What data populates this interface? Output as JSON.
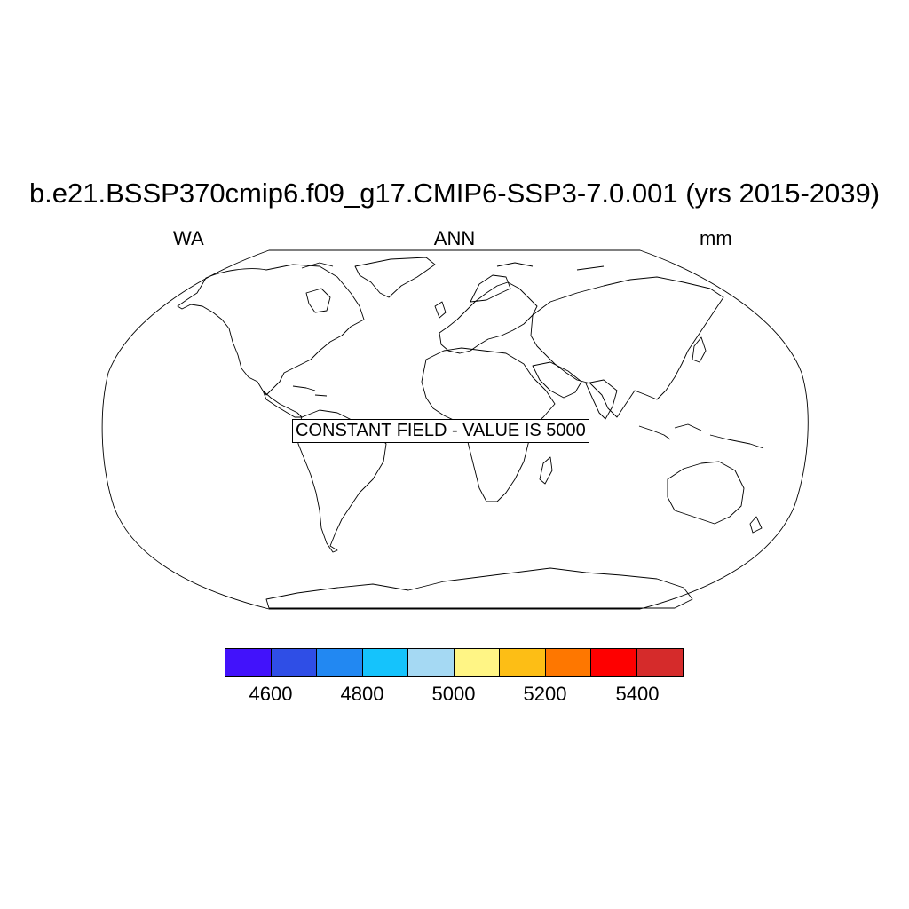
{
  "header": {
    "title": "b.e21.BSSP370cmip6.f09_g17.CMIP6-SSP3-7.0.001 (yrs 2015-2039)",
    "left_label": "WA",
    "center_label": "ANN",
    "right_label": "mm"
  },
  "map": {
    "projection": "Robinson",
    "annotation": "CONSTANT FIELD - VALUE IS 5000",
    "outline_color": "#000000"
  },
  "colorbar": {
    "colors": [
      "#4212fb",
      "#2f4ee6",
      "#2288f2",
      "#15c3fc",
      "#a5d9f3",
      "#fff585",
      "#fdbe15",
      "#fe7700",
      "#fe0000",
      "#d52b2b"
    ],
    "tick_labels": [
      "4600",
      "4800",
      "5000",
      "5200",
      "5400"
    ],
    "levels": [
      4600,
      4700,
      4800,
      4900,
      5000,
      5100,
      5200,
      5300,
      5400
    ]
  }
}
